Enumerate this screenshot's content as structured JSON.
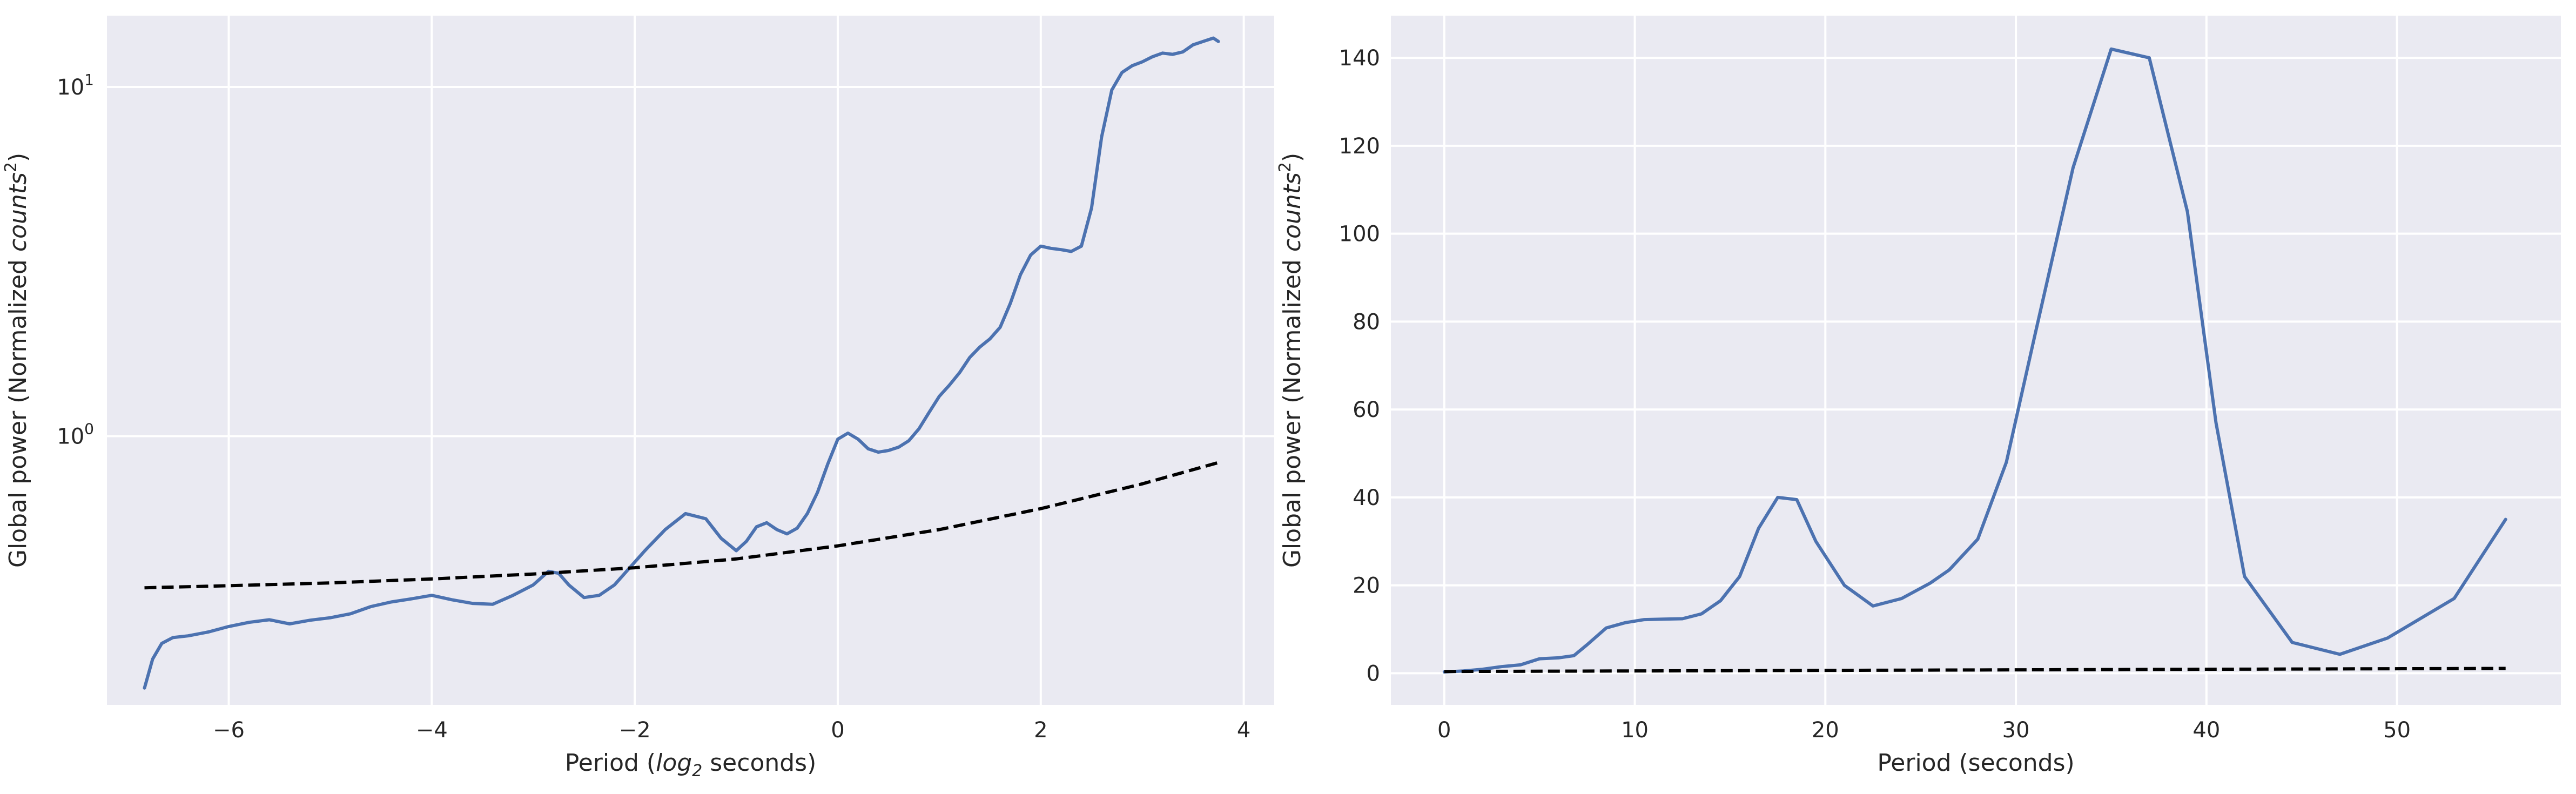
{
  "chart_data": [
    {
      "type": "line",
      "xscale": "linear",
      "yscale": "log",
      "xlim": [
        -7.2,
        4.3
      ],
      "ylim": [
        0.17,
        16
      ],
      "xticks": [
        -6,
        -4,
        -2,
        0,
        2,
        4
      ],
      "xtick_labels": [
        "−6",
        "−4",
        "−2",
        "0",
        "2",
        "4"
      ],
      "yticks": [
        1,
        10
      ],
      "ytick_labels": [
        {
          "base": "10",
          "exp": "0"
        },
        {
          "base": "10",
          "exp": "1"
        }
      ],
      "xlabel": {
        "pre": "Period (",
        "math": "log",
        "sub": "2",
        "post": " seconds)"
      },
      "ylabel": {
        "pre": "Global power (Normalized ",
        "math": "counts",
        "sup": "2",
        "post": ")"
      },
      "grid": true,
      "series": [
        {
          "style": "solid",
          "color": "#4c72b0",
          "x": [
            -6.83,
            -6.75,
            -6.66,
            -6.55,
            -6.4,
            -6.2,
            -6.0,
            -5.8,
            -5.6,
            -5.4,
            -5.2,
            -5.0,
            -4.8,
            -4.6,
            -4.4,
            -4.2,
            -4.0,
            -3.8,
            -3.6,
            -3.4,
            -3.2,
            -3.0,
            -2.85,
            -2.75,
            -2.65,
            -2.5,
            -2.35,
            -2.2,
            -2.05,
            -1.9,
            -1.7,
            -1.5,
            -1.3,
            -1.15,
            -1.0,
            -0.9,
            -0.8,
            -0.7,
            -0.6,
            -0.5,
            -0.4,
            -0.3,
            -0.2,
            -0.1,
            0.0,
            0.1,
            0.2,
            0.3,
            0.4,
            0.5,
            0.6,
            0.7,
            0.8,
            0.9,
            1.0,
            1.1,
            1.2,
            1.3,
            1.4,
            1.5,
            1.6,
            1.7,
            1.8,
            1.9,
            2.0,
            2.1,
            2.2,
            2.3,
            2.4,
            2.5,
            2.6,
            2.7,
            2.8,
            2.9,
            3.0,
            3.1,
            3.2,
            3.3,
            3.4,
            3.5,
            3.6,
            3.7,
            3.75
          ],
          "y": [
            0.19,
            0.23,
            0.255,
            0.265,
            0.268,
            0.275,
            0.285,
            0.293,
            0.298,
            0.29,
            0.297,
            0.302,
            0.31,
            0.325,
            0.335,
            0.342,
            0.35,
            0.34,
            0.332,
            0.33,
            0.35,
            0.375,
            0.41,
            0.405,
            0.375,
            0.345,
            0.35,
            0.375,
            0.42,
            0.47,
            0.54,
            0.6,
            0.58,
            0.51,
            0.47,
            0.5,
            0.55,
            0.565,
            0.54,
            0.525,
            0.545,
            0.6,
            0.69,
            0.83,
            0.98,
            1.02,
            0.98,
            0.92,
            0.9,
            0.91,
            0.93,
            0.97,
            1.05,
            1.17,
            1.3,
            1.4,
            1.52,
            1.68,
            1.8,
            1.9,
            2.05,
            2.4,
            2.9,
            3.3,
            3.5,
            3.45,
            3.42,
            3.38,
            3.5,
            4.5,
            7.2,
            9.8,
            11.0,
            11.5,
            11.8,
            12.2,
            12.5,
            12.4,
            12.6,
            13.2,
            13.5,
            13.8,
            13.5
          ]
        },
        {
          "style": "dashed",
          "color": "#000000",
          "x": [
            -6.83,
            -6.0,
            -5.0,
            -4.0,
            -3.0,
            -2.0,
            -1.0,
            0.0,
            1.0,
            2.0,
            3.0,
            3.75
          ],
          "y": [
            0.368,
            0.373,
            0.38,
            0.39,
            0.403,
            0.42,
            0.445,
            0.485,
            0.54,
            0.62,
            0.73,
            0.84
          ]
        }
      ]
    },
    {
      "type": "line",
      "xscale": "linear",
      "yscale": "linear",
      "xlim": [
        -2.8,
        58.6
      ],
      "ylim": [
        -7.2,
        149.6
      ],
      "xticks": [
        0,
        10,
        20,
        30,
        40,
        50
      ],
      "xtick_labels": [
        "0",
        "10",
        "20",
        "30",
        "40",
        "50"
      ],
      "yticks": [
        0,
        20,
        40,
        60,
        80,
        100,
        120,
        140
      ],
      "ytick_labels": [
        "0",
        "20",
        "40",
        "60",
        "80",
        "100",
        "120",
        "140"
      ],
      "xlabel": {
        "pre": "Period (seconds)",
        "math": "",
        "sub": "",
        "post": ""
      },
      "ylabel": {
        "pre": "Global power (Normalized ",
        "math": "counts",
        "sup": "2",
        "post": ")"
      },
      "grid": true,
      "series": [
        {
          "style": "solid",
          "color": "#4c72b0",
          "x": [
            0.0,
            1.0,
            2.0,
            3.0,
            4.0,
            5.0,
            6.0,
            6.8,
            7.5,
            8.5,
            9.5,
            10.5,
            11.5,
            12.5,
            13.5,
            14.5,
            15.5,
            16.5,
            17.5,
            18.5,
            19.5,
            21.0,
            22.5,
            24.0,
            25.5,
            26.5,
            28.0,
            29.5,
            31.0,
            33.0,
            35.0,
            37.0,
            39.0,
            40.5,
            42.0,
            44.5,
            47.0,
            49.5,
            53.0,
            55.7
          ],
          "y": [
            0.3,
            0.5,
            0.9,
            1.5,
            1.9,
            3.3,
            3.5,
            4.0,
            6.5,
            10.3,
            11.5,
            12.2,
            12.3,
            12.4,
            13.5,
            16.5,
            22.0,
            33.0,
            40.0,
            39.5,
            30.0,
            20.0,
            15.3,
            17.0,
            20.5,
            23.5,
            30.5,
            48.0,
            77.0,
            115.0,
            142.0,
            140.0,
            105.0,
            57.0,
            22.0,
            7.0,
            4.3,
            8.0,
            17.0,
            35.0
          ]
        },
        {
          "style": "dashed",
          "color": "#000000",
          "x": [
            0.0,
            55.7
          ],
          "y": [
            0.4,
            1.1
          ]
        }
      ]
    }
  ]
}
